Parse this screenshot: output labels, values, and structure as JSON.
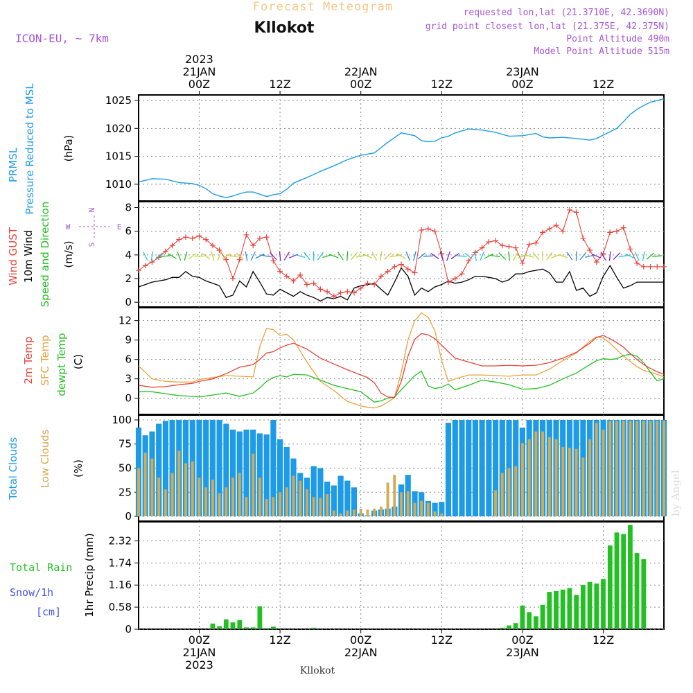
{
  "header": {
    "title": "Forecast Meteogram",
    "location": "Kllokot",
    "model": "ICON-EU,  ~ 7km",
    "requested": "requested lon,lat (21.3710E, 42.3690N)",
    "grid_point": "grid point closest lon,lat (21.375E, 42.375N)",
    "point_altitude": "Point Altitude 490m",
    "model_altitude": "Model Point Altitude 515m",
    "footer_location": "Kllokot",
    "watermark": "by Angel"
  },
  "time_axis": {
    "top_labels": [
      {
        "t": 0,
        "lines": [
          "2023",
          "21JAN",
          "00Z"
        ]
      },
      {
        "t": 12,
        "lines": [
          "12Z"
        ]
      },
      {
        "t": 24,
        "lines": [
          "22JAN",
          "00Z"
        ]
      },
      {
        "t": 36,
        "lines": [
          "12Z"
        ]
      },
      {
        "t": 48,
        "lines": [
          "23JAN",
          "00Z"
        ]
      },
      {
        "t": 60,
        "lines": [
          "12Z"
        ]
      }
    ],
    "bottom_labels": [
      {
        "t": 0,
        "lines": [
          "00Z",
          "21JAN",
          "2023"
        ]
      },
      {
        "t": 12,
        "lines": [
          "12Z"
        ]
      },
      {
        "t": 24,
        "lines": [
          "00Z",
          "22JAN"
        ]
      },
      {
        "t": 36,
        "lines": [
          "12Z"
        ]
      },
      {
        "t": 48,
        "lines": [
          "00Z",
          "23JAN"
        ]
      },
      {
        "t": 60,
        "lines": [
          "12Z"
        ]
      }
    ]
  },
  "panels": {
    "pressure": {
      "labels": [
        "PRMSL",
        "Pressure Reduced to MSL"
      ],
      "unit": "(hPa)",
      "ticks": [
        "1010",
        "1015",
        "1020",
        "1025"
      ]
    },
    "wind": {
      "labels": [
        "Wind GUST",
        "10m Wind",
        "Speed and Direction"
      ],
      "unit": "(m/s)",
      "ticks": [
        "0",
        "2",
        "4",
        "6",
        "8"
      ],
      "compass": {
        "n": "N",
        "s": "S",
        "w": "W",
        "e": "E"
      }
    },
    "temp": {
      "labels": [
        "2m Temp",
        "SFC Temp",
        "dewpt Temp"
      ],
      "unit": "(C)",
      "ticks": [
        "0",
        "3",
        "6",
        "9",
        "12"
      ]
    },
    "clouds": {
      "labels": [
        "Total Clouds",
        "Low Clouds"
      ],
      "unit": "(%)",
      "ticks": [
        "0",
        "25",
        "50",
        "75",
        "100"
      ]
    },
    "precip": {
      "labels": [
        "Total  Rain",
        "Snow/1h",
        "[cm]"
      ],
      "unit": "1hr Precip (mm)",
      "ticks": [
        "0",
        "0.58",
        "1.16",
        "1.74",
        "2.32"
      ]
    }
  },
  "colors": {
    "pressure": "#1e9be6",
    "gust": "#e8433a",
    "wind": "#000000",
    "t2m": "#e8433a",
    "sfc": "#e8a33a",
    "dewpt": "#22c022",
    "total_clouds": "#1e9be6",
    "low_clouds": "#d4aa55",
    "rain": "#22c022",
    "snow": "#4455ee",
    "title": "#f5c88a",
    "model": "#a855d8",
    "grid": "#888888"
  },
  "chart_data": {
    "type": "line",
    "time_unit": "hours since 2023-01-21 00Z",
    "x_range": [
      -9,
      69
    ],
    "pressure_hPa": {
      "t": [
        -9,
        -7,
        -5,
        -3,
        -1,
        0,
        1,
        2,
        3,
        4,
        5,
        6,
        7,
        8,
        9,
        10,
        11,
        12,
        13,
        14,
        16,
        18,
        20,
        22,
        24,
        26,
        28,
        30,
        32,
        33,
        34,
        35,
        36,
        37,
        38,
        40,
        42,
        44,
        46,
        48,
        49,
        50,
        51,
        52,
        54,
        56,
        58,
        59,
        60,
        61,
        62,
        63,
        64,
        65,
        66,
        67,
        68,
        69
      ],
      "values": [
        1010.4,
        1011.0,
        1010.9,
        1010.3,
        1010.1,
        1009.8,
        1009.2,
        1008.3,
        1007.9,
        1007.6,
        1007.9,
        1008.3,
        1008.6,
        1008.6,
        1008.2,
        1007.8,
        1008.1,
        1008.3,
        1009.1,
        1010.2,
        1011.2,
        1012.3,
        1013.3,
        1014.4,
        1015.2,
        1015.6,
        1017.5,
        1019.2,
        1018.7,
        1017.8,
        1017.6,
        1017.7,
        1018.3,
        1018.6,
        1019.2,
        1019.9,
        1019.7,
        1019.3,
        1018.6,
        1018.7,
        1018.9,
        1019.1,
        1018.5,
        1018.3,
        1018.4,
        1018.2,
        1017.9,
        1018.2,
        1018.8,
        1019.4,
        1020.0,
        1021.2,
        1022.5,
        1023.4,
        1024.1,
        1024.7,
        1025.0,
        1025.3
      ]
    },
    "wind_ms": {
      "t": [
        -9,
        -8,
        -7,
        -6,
        -5,
        -4,
        -3,
        -2,
        -1,
        0,
        1,
        2,
        3,
        4,
        5,
        6,
        7,
        8,
        9,
        10,
        11,
        12,
        13,
        14,
        15,
        16,
        17,
        18,
        19,
        20,
        21,
        22,
        23,
        24,
        25,
        26,
        27,
        28,
        29,
        30,
        31,
        32,
        33,
        34,
        35,
        36,
        37,
        38,
        39,
        40,
        41,
        42,
        43,
        44,
        45,
        46,
        47,
        48,
        49,
        50,
        51,
        52,
        53,
        54,
        55,
        56,
        57,
        58,
        59,
        60,
        61,
        62,
        63,
        64,
        65,
        66,
        67,
        68,
        69
      ],
      "gust": [
        2.7,
        3.1,
        3.4,
        3.8,
        4.3,
        4.8,
        5.3,
        5.5,
        5.4,
        5.6,
        5.3,
        4.8,
        4.4,
        3.6,
        2.0,
        3.6,
        5.7,
        4.8,
        5.4,
        5.5,
        3.5,
        2.6,
        2.2,
        1.8,
        2.3,
        1.5,
        1.6,
        1.1,
        0.9,
        0.5,
        0.8,
        0.9,
        0.8,
        1.2,
        1.6,
        1.5,
        2.2,
        2.6,
        3.0,
        3.2,
        2.8,
        2.5,
        6.1,
        6.2,
        6.0,
        4.1,
        1.7,
        2.0,
        2.4,
        3.5,
        4.2,
        4.6,
        5.1,
        5.2,
        4.8,
        4.7,
        4.6,
        3.3,
        4.9,
        5.0,
        5.9,
        6.2,
        6.5,
        6.0,
        7.8,
        7.6,
        5.4,
        4.4,
        3.4,
        4.1,
        5.9,
        6.0,
        6.3,
        4.5,
        3.3,
        3.0,
        3.0,
        3.0,
        3.0
      ],
      "speed": [
        1.3,
        1.5,
        1.7,
        1.8,
        1.9,
        2.1,
        2.1,
        2.6,
        2.2,
        2.1,
        1.8,
        1.6,
        1.4,
        0.4,
        0.6,
        1.8,
        1.3,
        2.6,
        1.7,
        0.7,
        0.6,
        1.1,
        0.8,
        0.5,
        0.9,
        0.6,
        0.4,
        0.1,
        0.4,
        0.3,
        0.5,
        0.2,
        1.2,
        1.4,
        1.5,
        1.6,
        1.1,
        0.6,
        1.7,
        2.9,
        2.2,
        0.6,
        1.2,
        0.9,
        1.3,
        1.5,
        1.8,
        1.6,
        1.7,
        1.9,
        2.2,
        2.2,
        2.1,
        2.0,
        1.7,
        1.9,
        2.4,
        2.4,
        2.6,
        2.7,
        2.8,
        2.5,
        1.7,
        1.7,
        2.6,
        1.0,
        1.2,
        0.5,
        0.8,
        2.2,
        3.1,
        2.1,
        1.2,
        1.4,
        1.7,
        1.7,
        1.7,
        1.7,
        1.7
      ]
    },
    "temperature_C": {
      "t": [
        -9,
        -7,
        -5,
        -3,
        -1,
        0,
        2,
        4,
        6,
        8,
        9,
        10,
        11,
        12,
        13,
        14,
        16,
        18,
        20,
        22,
        24,
        25,
        26,
        27,
        28,
        29,
        30,
        31,
        32,
        33,
        34,
        35,
        36,
        37,
        38,
        40,
        42,
        44,
        46,
        48,
        50,
        52,
        54,
        56,
        58,
        59,
        60,
        61,
        62,
        63,
        64,
        65,
        66,
        67,
        68,
        69
      ],
      "t2m": [
        2.0,
        1.7,
        1.8,
        2.1,
        2.3,
        2.6,
        3.0,
        3.8,
        4.8,
        5.2,
        6.0,
        7.0,
        7.2,
        7.8,
        8.2,
        8.5,
        7.6,
        6.2,
        5.3,
        4.4,
        3.6,
        3.2,
        2.4,
        0.8,
        0.2,
        0.1,
        2.6,
        6.5,
        9.1,
        10.0,
        9.8,
        9.2,
        8.2,
        7.2,
        6.2,
        5.6,
        5.0,
        5.0,
        5.1,
        5.0,
        5.1,
        5.5,
        6.2,
        7.1,
        8.5,
        9.4,
        9.7,
        9.2,
        8.6,
        7.9,
        6.9,
        6.0,
        5.2,
        4.6,
        4.1,
        3.7
      ],
      "sfc": [
        5.0,
        3.0,
        2.6,
        2.5,
        2.5,
        2.9,
        3.2,
        3.5,
        3.4,
        3.3,
        8.0,
        10.8,
        10.6,
        9.7,
        9.9,
        9.0,
        5.6,
        2.6,
        1.2,
        -0.5,
        -1.2,
        -1.4,
        -1.5,
        -1.2,
        -0.6,
        0.1,
        4.0,
        9.0,
        12.0,
        13.2,
        12.5,
        10.4,
        5.8,
        2.6,
        3.0,
        3.6,
        3.6,
        3.5,
        3.4,
        3.6,
        3.6,
        4.5,
        5.8,
        7.0,
        8.8,
        9.5,
        9.3,
        8.5,
        7.5,
        6.5,
        5.7,
        4.9,
        4.3,
        4.0,
        3.7,
        3.3
      ],
      "dewpt": [
        1.0,
        1.0,
        0.7,
        0.4,
        0.3,
        0.2,
        0.5,
        0.8,
        0.3,
        0.8,
        1.6,
        2.6,
        3.2,
        3.5,
        3.3,
        3.7,
        3.6,
        2.8,
        2.0,
        1.5,
        1.0,
        0.2,
        -0.6,
        -0.4,
        0.0,
        0.2,
        1.3,
        2.4,
        3.5,
        4.2,
        1.9,
        1.5,
        1.7,
        2.2,
        1.3,
        2.0,
        2.8,
        2.5,
        2.1,
        1.4,
        1.5,
        2.0,
        3.0,
        3.9,
        5.2,
        5.8,
        6.1,
        6.0,
        6.1,
        6.6,
        6.8,
        6.5,
        5.5,
        4.0,
        2.7,
        3.0
      ]
    },
    "clouds_pct": {
      "t": [
        -9,
        -8,
        -7,
        -6,
        -5,
        -4,
        -3,
        -2,
        -1,
        0,
        1,
        2,
        3,
        4,
        5,
        6,
        7,
        8,
        9,
        10,
        11,
        12,
        13,
        14,
        15,
        16,
        17,
        18,
        19,
        20,
        21,
        22,
        23,
        24,
        25,
        26,
        27,
        28,
        29,
        30,
        31,
        32,
        33,
        34,
        35,
        36,
        37,
        38,
        39,
        40,
        41,
        42,
        43,
        44,
        45,
        46,
        47,
        48,
        49,
        50,
        51,
        52,
        53,
        54,
        55,
        56,
        57,
        58,
        59,
        60,
        61,
        62,
        63,
        64,
        65,
        66,
        67,
        68,
        69
      ],
      "total": [
        92,
        84,
        88,
        96,
        99,
        100,
        100,
        100,
        100,
        100,
        100,
        100,
        100,
        96,
        90,
        88,
        90,
        90,
        86,
        85,
        100,
        80,
        72,
        60,
        45,
        40,
        52,
        50,
        36,
        32,
        42,
        37,
        30,
        3,
        1,
        6,
        7,
        8,
        10,
        33,
        43,
        26,
        25,
        16,
        14,
        15,
        97,
        100,
        100,
        100,
        100,
        100,
        100,
        100,
        100,
        100,
        100,
        92,
        100,
        100,
        100,
        100,
        100,
        100,
        100,
        100,
        100,
        100,
        100,
        100,
        100,
        100,
        100,
        100,
        100,
        100,
        100,
        100,
        100
      ],
      "low": [
        50,
        66,
        60,
        40,
        28,
        45,
        68,
        55,
        57,
        40,
        30,
        38,
        24,
        30,
        40,
        45,
        20,
        65,
        40,
        18,
        20,
        25,
        30,
        42,
        37,
        28,
        20,
        19,
        23,
        6,
        3,
        6,
        7,
        8,
        7,
        8,
        10,
        35,
        43,
        25,
        26,
        14,
        16,
        14,
        5,
        3,
        0,
        0,
        0,
        0,
        0,
        0,
        0,
        27,
        45,
        50,
        52,
        76,
        80,
        88,
        88,
        82,
        80,
        72,
        71,
        70,
        61,
        80,
        97,
        90,
        99,
        99,
        99,
        99,
        99,
        99,
        99,
        99,
        99
      ]
    },
    "precip_mm": {
      "t": [
        -9,
        -8,
        -7,
        -6,
        -5,
        -4,
        -3,
        -2,
        -1,
        0,
        1,
        2,
        3,
        4,
        5,
        6,
        7,
        8,
        9,
        10,
        11,
        12,
        13,
        14,
        15,
        16,
        17,
        18,
        19,
        20,
        21,
        22,
        23,
        24,
        25,
        26,
        27,
        28,
        29,
        30,
        31,
        32,
        33,
        34,
        35,
        36,
        37,
        38,
        39,
        40,
        41,
        42,
        43,
        44,
        45,
        46,
        47,
        48,
        49,
        50,
        51,
        52,
        53,
        54,
        55,
        56,
        57,
        58,
        59,
        60,
        61,
        62,
        63,
        64,
        65,
        66,
        67,
        68,
        69
      ],
      "rain": [
        0,
        0,
        0,
        0,
        0,
        0,
        0,
        0,
        0,
        0,
        0,
        0.15,
        0.08,
        0.26,
        0.18,
        0.24,
        0.05,
        0.05,
        0.6,
        0.03,
        0.07,
        0,
        0,
        0,
        0,
        0,
        0.04,
        0,
        0,
        0,
        0,
        0,
        0,
        0,
        0,
        0,
        0,
        0,
        0,
        0,
        0,
        0,
        0,
        0,
        0,
        0,
        0,
        0,
        0,
        0,
        0,
        0,
        0,
        0,
        0.04,
        0.1,
        0.16,
        0.62,
        0.45,
        0.34,
        0.64,
        0.98,
        1.0,
        1.04,
        1.08,
        0.9,
        1.16,
        1.24,
        1.2,
        1.32,
        2.2,
        2.54,
        2.5,
        2.74,
        2.0,
        1.84,
        0,
        0,
        0
      ]
    }
  }
}
